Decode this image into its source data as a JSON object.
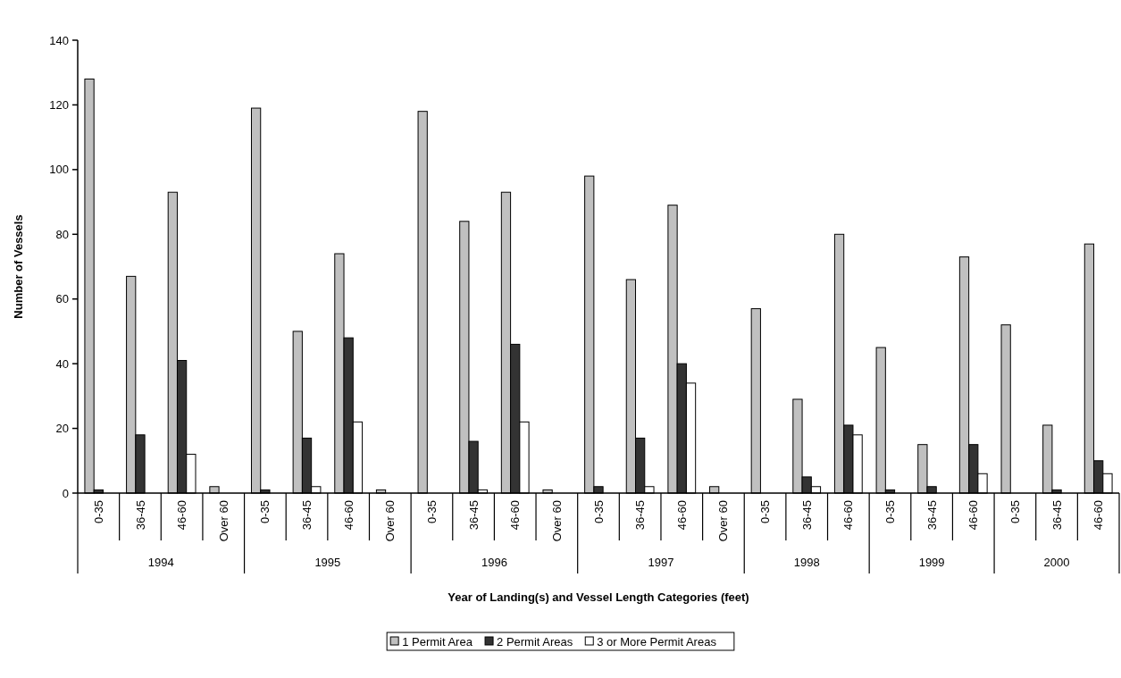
{
  "chart_data": {
    "type": "bar",
    "xlabel": "Year of Landing(s) and Vessel Length Categories (feet)",
    "ylabel": "Number of Vessels",
    "categories": [
      "0-35",
      "36-45",
      "46-60",
      "Over 60",
      "0-35",
      "36-45",
      "46-60",
      "Over 60",
      "0-35",
      "36-45",
      "46-60",
      "Over 60",
      "0-35",
      "36-45",
      "46-60",
      "Over 60",
      "0-35",
      "36-45",
      "46-60",
      "0-35",
      "36-45",
      "46-60",
      "0-35",
      "36-45",
      "46-60"
    ],
    "annotations": [
      "1994",
      "1995",
      "1996",
      "1997",
      "1998",
      "1999",
      "2000"
    ],
    "series": [
      {
        "name": "1 Permit Area",
        "color": "#c0c0c0",
        "values": [
          128,
          67,
          93,
          2,
          119,
          50,
          74,
          1,
          118,
          84,
          93,
          1,
          98,
          66,
          89,
          2,
          57,
          29,
          80,
          45,
          15,
          73,
          52,
          21,
          77
        ]
      },
      {
        "name": "2 Permit Areas",
        "color": "#333333",
        "values": [
          1,
          18,
          41,
          0,
          1,
          17,
          48,
          0,
          0,
          16,
          46,
          0,
          2,
          17,
          40,
          0,
          0,
          5,
          21,
          1,
          2,
          15,
          0,
          1,
          10
        ]
      },
      {
        "name": "3 or More Permit Areas",
        "color": "#ffffff",
        "values": [
          0,
          0,
          12,
          0,
          0,
          2,
          22,
          0,
          0,
          1,
          22,
          0,
          0,
          2,
          34,
          0,
          0,
          2,
          18,
          0,
          0,
          6,
          0,
          0,
          6
        ]
      }
    ],
    "ylim": [
      0,
      140
    ],
    "yticks": [
      0,
      20,
      40,
      60,
      80,
      100,
      120,
      140
    ],
    "legend": "bottom"
  }
}
